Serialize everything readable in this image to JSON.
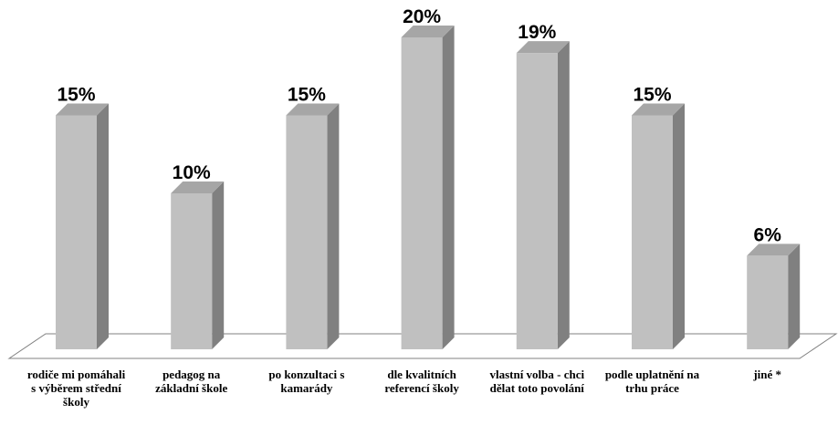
{
  "chart_data": {
    "type": "bar",
    "title": "",
    "xlabel": "",
    "ylabel": "",
    "ylim": [
      0,
      20
    ],
    "grid": false,
    "legend": "none",
    "style": "3d",
    "unit": "%",
    "categories": [
      "rodiče mi pomáhali s výběrem střední školy",
      "pedagog na základní škole",
      "po konzultaci s kamarády",
      "dle kvalitních referencí školy",
      "vlastní volba - chci dělat toto povolání",
      "podle uplatnění na trhu práce",
      "jiné *"
    ],
    "values": [
      15,
      10,
      15,
      20,
      19,
      15,
      6
    ],
    "data_labels": [
      "15%",
      "10%",
      "15%",
      "20%",
      "19%",
      "15%",
      "6%"
    ],
    "colors": {
      "bar_front": "#c0c0c0",
      "bar_side": "#808080",
      "bar_top": "#a6a6a6",
      "floor": "#808080"
    }
  }
}
